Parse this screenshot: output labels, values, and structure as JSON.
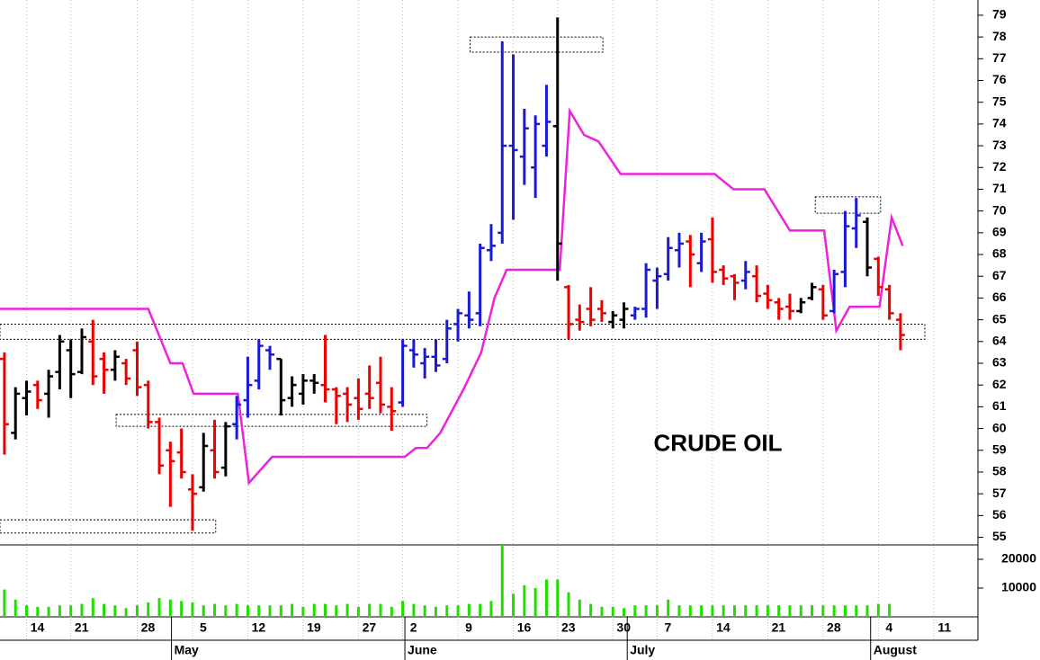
{
  "chart_data": {
    "type": "ohlc",
    "annotation": {
      "text": "CRUDE OIL",
      "x": 64.5,
      "y": 59.25
    },
    "open": [
      63.2,
      59.8,
      61.4,
      62.0,
      61.6,
      62.6,
      63.6,
      62.6,
      64.0,
      63.2,
      62.7,
      63.0,
      63.6,
      62.0,
      60.3,
      59.0,
      58.9,
      57.2,
      57.3,
      59.0,
      58.2,
      60.2,
      61.3,
      62.2,
      63.6,
      63.2,
      61.4,
      61.6,
      62.2,
      62.0,
      61.8,
      61.6,
      61.4,
      61.6,
      62.1,
      61.0,
      61.2,
      63.6,
      63.0,
      63.3,
      63.2,
      64.8,
      65.2,
      65.3,
      68.2,
      69.0,
      73.0,
      72.5,
      72.0,
      73.0,
      73.9,
      66.5,
      65.0,
      65.5,
      65.5,
      64.9,
      65.0,
      65.2,
      65.5,
      66.8,
      67.1,
      68.2,
      68.6,
      67.6,
      68.7,
      67.3,
      67.0,
      66.8,
      67.0,
      66.2,
      65.8,
      65.6,
      65.4,
      66.0,
      66.4,
      65.4,
      67.2,
      69.2,
      69.5,
      67.8,
      66.4,
      65.0
    ],
    "high": [
      63.5,
      61.9,
      62.2,
      62.2,
      62.7,
      64.3,
      64.1,
      64.6,
      65.0,
      63.5,
      63.6,
      63.2,
      64.0,
      62.2,
      60.5,
      59.4,
      60.0,
      57.9,
      59.8,
      60.4,
      60.3,
      61.5,
      63.3,
      64.1,
      63.8,
      63.2,
      62.4,
      62.5,
      62.5,
      64.3,
      61.9,
      61.9,
      62.3,
      62.9,
      63.3,
      61.9,
      64.1,
      64.1,
      63.7,
      64.1,
      65.0,
      65.5,
      66.3,
      68.5,
      69.4,
      77.8,
      77.2,
      74.7,
      74.4,
      75.8,
      78.9,
      66.6,
      65.7,
      66.5,
      65.9,
      65.4,
      65.8,
      65.6,
      67.6,
      67.4,
      68.8,
      69.0,
      68.9,
      69.0,
      69.7,
      67.5,
      67.1,
      67.7,
      67.5,
      66.6,
      66.0,
      66.2,
      66.0,
      66.7,
      66.6,
      67.3,
      70.0,
      70.6,
      69.7,
      67.9,
      66.6,
      65.3
    ],
    "low": [
      58.8,
      59.5,
      60.6,
      60.9,
      60.5,
      61.8,
      61.4,
      62.5,
      62.0,
      61.6,
      62.2,
      62.0,
      61.5,
      60.0,
      57.9,
      56.4,
      57.7,
      55.3,
      57.1,
      57.7,
      57.8,
      59.5,
      60.5,
      61.8,
      62.7,
      60.6,
      61.0,
      61.1,
      61.6,
      61.2,
      60.2,
      60.3,
      60.4,
      60.9,
      60.7,
      59.9,
      61.0,
      62.8,
      62.3,
      62.6,
      63.0,
      64.0,
      64.6,
      64.7,
      67.7,
      68.5,
      69.6,
      71.2,
      70.6,
      72.5,
      66.8,
      64.1,
      64.5,
      64.7,
      64.9,
      64.6,
      64.6,
      65.0,
      65.1,
      65.5,
      66.8,
      67.4,
      66.5,
      67.2,
      66.7,
      66.6,
      65.9,
      66.4,
      65.8,
      65.5,
      65.0,
      65.0,
      65.3,
      65.9,
      65.0,
      65.3,
      66.5,
      68.3,
      67.0,
      66.1,
      65.0,
      63.6
    ],
    "close": [
      60.2,
      61.6,
      61.7,
      61.3,
      62.4,
      64.0,
      62.5,
      64.2,
      62.4,
      62.7,
      63.3,
      62.3,
      61.9,
      60.3,
      58.3,
      58.5,
      58.0,
      57.0,
      59.2,
      58.0,
      60.1,
      61.1,
      62.0,
      63.8,
      63.4,
      61.3,
      62.0,
      62.2,
      62.1,
      61.8,
      61.5,
      61.1,
      60.9,
      61.4,
      61.1,
      60.8,
      63.8,
      63.4,
      63.3,
      62.9,
      64.6,
      65.3,
      65.0,
      68.3,
      68.4,
      73.0,
      72.8,
      73.8,
      74.0,
      74.1,
      68.5,
      64.8,
      64.9,
      65.0,
      65.3,
      65.2,
      65.5,
      65.5,
      67.3,
      67.0,
      68.3,
      68.5,
      68.0,
      68.6,
      67.2,
      66.9,
      66.7,
      67.2,
      66.1,
      65.9,
      65.5,
      65.4,
      65.8,
      66.5,
      65.2,
      67.1,
      69.3,
      69.8,
      67.4,
      66.5,
      65.3,
      64.3
    ],
    "bar_colors": [
      "#ee0000",
      "#000000",
      "#000000",
      "#ee0000",
      "#000000",
      "#000000",
      "#000000",
      "#000000",
      "#ee0000",
      "#ee0000",
      "#000000",
      "#ee0000",
      "#ee0000",
      "#ee0000",
      "#ee0000",
      "#ee0000",
      "#ee0000",
      "#ee0000",
      "#000000",
      "#ee0000",
      "#000000",
      "#1a1ad6",
      "#1a1ad6",
      "#1a1ad6",
      "#1a1ad6",
      "#000000",
      "#000000",
      "#000000",
      "#000000",
      "#ee0000",
      "#ee0000",
      "#ee0000",
      "#ee0000",
      "#ee0000",
      "#ee0000",
      "#ee0000",
      "#1a1ad6",
      "#1a1ad6",
      "#1a1ad6",
      "#1a1ad6",
      "#1a1ad6",
      "#1a1ad6",
      "#1a1ad6",
      "#1a1ad6",
      "#1a1ad6",
      "#1a1ad6",
      "#1a1ad6",
      "#1a1ad6",
      "#1a1ad6",
      "#1a1ad6",
      "#000000",
      "#ee0000",
      "#ee0000",
      "#ee0000",
      "#ee0000",
      "#000000",
      "#000000",
      "#1a1ad6",
      "#1a1ad6",
      "#1a1ad6",
      "#1a1ad6",
      "#1a1ad6",
      "#ee0000",
      "#1a1ad6",
      "#ee0000",
      "#ee0000",
      "#ee0000",
      "#1a1ad6",
      "#ee0000",
      "#ee0000",
      "#ee0000",
      "#ee0000",
      "#000000",
      "#000000",
      "#ee0000",
      "#1a1ad6",
      "#1a1ad6",
      "#1a1ad6",
      "#000000",
      "#ee0000",
      "#ee0000",
      "#ee0000"
    ],
    "volume": [
      9500,
      6000,
      4000,
      3500,
      3500,
      4000,
      4000,
      4500,
      6500,
      4500,
      4000,
      3000,
      4000,
      5000,
      6500,
      6000,
      5500,
      5000,
      4000,
      4500,
      4000,
      4500,
      4000,
      4000,
      4000,
      4000,
      4500,
      3500,
      4500,
      4500,
      4000,
      4500,
      3500,
      4500,
      4500,
      3500,
      5500,
      4500,
      4000,
      3500,
      4000,
      4000,
      4500,
      4500,
      5500,
      25000,
      8000,
      11000,
      10000,
      13000,
      13000,
      8500,
      6000,
      4500,
      3500,
      3500,
      3000,
      4000,
      4000,
      4000,
      6000,
      4000,
      4000,
      4000,
      4000,
      4000,
      4000,
      4000,
      4000,
      4000,
      4000,
      4000,
      4000,
      4000,
      4000,
      4000,
      4000,
      4000,
      4000,
      4500,
      4500,
      null
    ],
    "volume_color": "#22dd00",
    "line": {
      "color": "#ee22dd",
      "x": [
        -0.4,
        13.0,
        15.0,
        16.1,
        17.1,
        21.1,
        22.1,
        24.2,
        36.2,
        37.2,
        38.2,
        39.4,
        41.5,
        43.1,
        44.3,
        45.4,
        50.2,
        51.1,
        52.4,
        53.7,
        55.7,
        64.2,
        65.9,
        68.7,
        71.0,
        74.1,
        75.2,
        76.4,
        79.1,
        80.2,
        81.2
      ],
      "values": [
        65.5,
        65.5,
        63.0,
        63.0,
        61.6,
        61.6,
        57.5,
        58.7,
        58.7,
        59.1,
        59.1,
        59.8,
        61.8,
        63.5,
        66.0,
        67.3,
        67.3,
        74.6,
        73.5,
        73.2,
        71.7,
        71.7,
        71.0,
        71.0,
        69.1,
        69.1,
        64.5,
        65.6,
        65.6,
        69.7,
        68.4
      ]
    },
    "boxes": [
      {
        "x": [
          -0.4,
          19.1
        ],
        "y": [
          55.2,
          55.8
        ]
      },
      {
        "x": [
          10.1,
          38.2
        ],
        "y": [
          60.1,
          60.65
        ]
      },
      {
        "x": [
          -0.4,
          83.2
        ],
        "y": [
          64.1,
          64.8
        ]
      },
      {
        "x": [
          42.1,
          54.1
        ],
        "y": [
          77.3,
          78.0
        ]
      },
      {
        "x": [
          73.3,
          79.2
        ],
        "y": [
          69.9,
          70.65
        ]
      }
    ],
    "xlim": [
      -0.4,
      88
    ],
    "ylim": [
      54.65,
      79.7
    ],
    "yticks": [
      55,
      56,
      57,
      58,
      59,
      60,
      61,
      62,
      63,
      64,
      65,
      66,
      67,
      68,
      69,
      70,
      71,
      72,
      73,
      74,
      75,
      76,
      77,
      78,
      79
    ],
    "volume_lim": [
      0,
      25000
    ],
    "volume_ticks": [
      10000,
      20000
    ],
    "xticks": [
      {
        "value": 2,
        "label": "14"
      },
      {
        "value": 6,
        "label": "21"
      },
      {
        "value": 12,
        "label": "28"
      },
      {
        "value": 17,
        "label": "5"
      },
      {
        "value": 22,
        "label": "12"
      },
      {
        "value": 27,
        "label": "19"
      },
      {
        "value": 32,
        "label": "27"
      },
      {
        "value": 36,
        "label": "2"
      },
      {
        "value": 41,
        "label": "9"
      },
      {
        "value": 46,
        "label": "16"
      },
      {
        "value": 50,
        "label": "23"
      },
      {
        "value": 55,
        "label": "30"
      },
      {
        "value": 59,
        "label": "7"
      },
      {
        "value": 64,
        "label": "14"
      },
      {
        "value": 69,
        "label": "21"
      },
      {
        "value": 74,
        "label": "28"
      },
      {
        "value": 79,
        "label": "4"
      },
      {
        "value": 84,
        "label": "11"
      }
    ],
    "month_ticks": [
      {
        "value": 15.1,
        "label": "May"
      },
      {
        "value": 36.2,
        "label": "June"
      },
      {
        "value": 56.3,
        "label": "July"
      },
      {
        "value": 78.3,
        "label": "August"
      }
    ],
    "grid": true
  }
}
